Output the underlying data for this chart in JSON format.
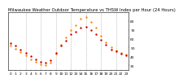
{
  "title": "Milwaukee Weather Outdoor Temperature vs THSW Index per Hour (24 Hours)",
  "title_fontsize": 3.8,
  "background_color": "#ffffff",
  "plot_bg_color": "#ffffff",
  "grid_color": "#999999",
  "x_hours": [
    0,
    1,
    2,
    3,
    4,
    5,
    6,
    7,
    8,
    9,
    10,
    11,
    12,
    13,
    14,
    15,
    16,
    17,
    18,
    19,
    20,
    21,
    22,
    23
  ],
  "temp_values": [
    55,
    52,
    48,
    44,
    40,
    37,
    34,
    33,
    36,
    44,
    52,
    58,
    65,
    68,
    72,
    73,
    70,
    65,
    59,
    53,
    48,
    46,
    43,
    41
  ],
  "thsw_values": [
    52,
    49,
    45,
    41,
    37,
    34,
    31,
    30,
    33,
    43,
    53,
    61,
    70,
    75,
    82,
    84,
    79,
    72,
    63,
    56,
    50,
    47,
    44,
    42
  ],
  "temp_color": "#cc0000",
  "thsw_color": "#ff8800",
  "marker_size": 3.0,
  "ylim": [
    25,
    90
  ],
  "xlim": [
    -0.5,
    23.5
  ],
  "yticks": [
    30,
    40,
    50,
    60,
    70,
    80
  ],
  "ytick_labels": [
    "30",
    "40",
    "50",
    "60",
    "70",
    "80"
  ],
  "xticks": [
    0,
    1,
    2,
    3,
    4,
    5,
    6,
    7,
    8,
    9,
    10,
    11,
    12,
    13,
    14,
    15,
    16,
    17,
    18,
    19,
    20,
    21,
    22,
    23
  ],
  "xtick_labels": [
    "0",
    "1",
    "2",
    "3",
    "4",
    "5",
    "6",
    "7",
    "8",
    "9",
    "10",
    "11",
    "12",
    "13",
    "14",
    "15",
    "16",
    "17",
    "18",
    "19",
    "20",
    "21",
    "22",
    "23"
  ],
  "tick_fontsize": 3.2,
  "vgrid_positions": [
    3,
    6,
    9,
    12,
    15,
    18,
    21
  ]
}
